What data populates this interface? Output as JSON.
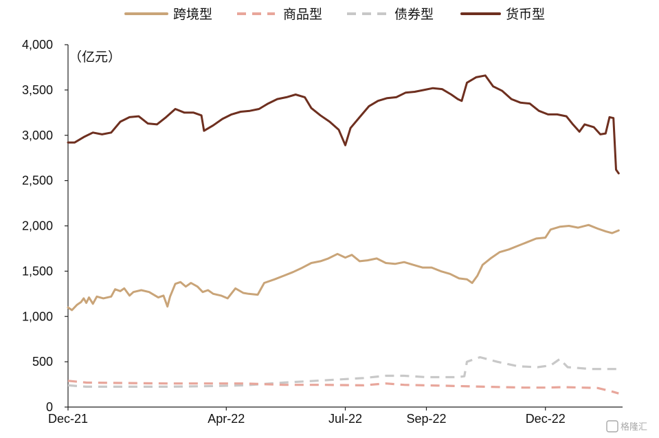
{
  "chart_data": {
    "type": "line",
    "unit_label": "（亿元）",
    "ylim": [
      0,
      4000
    ],
    "y_ticks": [
      0,
      500,
      1000,
      1500,
      2000,
      2500,
      3000,
      3500,
      4000
    ],
    "y_tick_labels": [
      "0",
      "500",
      "1,000",
      "1,500",
      "2,000",
      "2,500",
      "3,000",
      "3,500",
      "4,000"
    ],
    "xlim": [
      "2021-12-01",
      "2023-01-29"
    ],
    "x_ticks": [
      "2021-12-01",
      "2022-04-01",
      "2022-07-01",
      "2022-09-01",
      "2022-12-01"
    ],
    "x_tick_labels": [
      "Dec-21",
      "Apr-22",
      "Jul-22",
      "Sep-22",
      "Dec-22"
    ],
    "grid": false,
    "legend_position": "top",
    "series": [
      {
        "name": "跨境型",
        "color": "#c9a478",
        "style": "solid",
        "points": [
          [
            "2021-12-01",
            1100
          ],
          [
            "2021-12-04",
            1070
          ],
          [
            "2021-12-08",
            1130
          ],
          [
            "2021-12-11",
            1160
          ],
          [
            "2021-12-13",
            1200
          ],
          [
            "2021-12-15",
            1150
          ],
          [
            "2021-12-17",
            1210
          ],
          [
            "2021-12-20",
            1140
          ],
          [
            "2021-12-23",
            1220
          ],
          [
            "2021-12-28",
            1200
          ],
          [
            "2022-01-03",
            1220
          ],
          [
            "2022-01-06",
            1300
          ],
          [
            "2022-01-10",
            1280
          ],
          [
            "2022-01-13",
            1310
          ],
          [
            "2022-01-17",
            1230
          ],
          [
            "2022-01-20",
            1270
          ],
          [
            "2022-01-26",
            1290
          ],
          [
            "2022-02-01",
            1270
          ],
          [
            "2022-02-08",
            1210
          ],
          [
            "2022-02-12",
            1230
          ],
          [
            "2022-02-15",
            1110
          ],
          [
            "2022-02-17",
            1220
          ],
          [
            "2022-02-21",
            1360
          ],
          [
            "2022-02-25",
            1380
          ],
          [
            "2022-03-01",
            1330
          ],
          [
            "2022-03-05",
            1370
          ],
          [
            "2022-03-10",
            1330
          ],
          [
            "2022-03-14",
            1270
          ],
          [
            "2022-03-18",
            1290
          ],
          [
            "2022-03-22",
            1250
          ],
          [
            "2022-03-28",
            1230
          ],
          [
            "2022-04-02",
            1200
          ],
          [
            "2022-04-08",
            1310
          ],
          [
            "2022-04-14",
            1260
          ],
          [
            "2022-04-18",
            1250
          ],
          [
            "2022-04-25",
            1240
          ],
          [
            "2022-04-30",
            1370
          ],
          [
            "2022-05-08",
            1410
          ],
          [
            "2022-05-15",
            1450
          ],
          [
            "2022-05-22",
            1490
          ],
          [
            "2022-05-28",
            1530
          ],
          [
            "2022-06-05",
            1590
          ],
          [
            "2022-06-12",
            1610
          ],
          [
            "2022-06-18",
            1640
          ],
          [
            "2022-06-25",
            1690
          ],
          [
            "2022-07-01",
            1650
          ],
          [
            "2022-07-06",
            1680
          ],
          [
            "2022-07-12",
            1610
          ],
          [
            "2022-07-18",
            1620
          ],
          [
            "2022-07-25",
            1640
          ],
          [
            "2022-08-01",
            1590
          ],
          [
            "2022-08-08",
            1580
          ],
          [
            "2022-08-15",
            1600
          ],
          [
            "2022-08-22",
            1570
          ],
          [
            "2022-08-29",
            1540
          ],
          [
            "2022-09-05",
            1540
          ],
          [
            "2022-09-12",
            1500
          ],
          [
            "2022-09-19",
            1470
          ],
          [
            "2022-09-26",
            1420
          ],
          [
            "2022-10-02",
            1410
          ],
          [
            "2022-10-06",
            1370
          ],
          [
            "2022-10-10",
            1450
          ],
          [
            "2022-10-14",
            1570
          ],
          [
            "2022-10-20",
            1640
          ],
          [
            "2022-10-27",
            1710
          ],
          [
            "2022-11-03",
            1740
          ],
          [
            "2022-11-10",
            1780
          ],
          [
            "2022-11-17",
            1820
          ],
          [
            "2022-11-24",
            1860
          ],
          [
            "2022-12-01",
            1870
          ],
          [
            "2022-12-05",
            1960
          ],
          [
            "2022-12-12",
            1990
          ],
          [
            "2022-12-19",
            2000
          ],
          [
            "2022-12-26",
            1980
          ],
          [
            "2023-01-03",
            2010
          ],
          [
            "2023-01-10",
            1970
          ],
          [
            "2023-01-16",
            1940
          ],
          [
            "2023-01-21",
            1920
          ],
          [
            "2023-01-26",
            1950
          ]
        ]
      },
      {
        "name": "商品型",
        "color": "#e8a69b",
        "style": "dashed",
        "points": [
          [
            "2021-12-01",
            290
          ],
          [
            "2021-12-15",
            270
          ],
          [
            "2022-01-15",
            265
          ],
          [
            "2022-02-15",
            260
          ],
          [
            "2022-03-15",
            260
          ],
          [
            "2022-04-15",
            260
          ],
          [
            "2022-05-15",
            245
          ],
          [
            "2022-06-15",
            245
          ],
          [
            "2022-07-15",
            240
          ],
          [
            "2022-08-01",
            260
          ],
          [
            "2022-08-15",
            245
          ],
          [
            "2022-09-15",
            235
          ],
          [
            "2022-10-15",
            225
          ],
          [
            "2022-11-15",
            215
          ],
          [
            "2022-12-01",
            215
          ],
          [
            "2022-12-15",
            220
          ],
          [
            "2023-01-10",
            210
          ],
          [
            "2023-01-20",
            175
          ],
          [
            "2023-01-26",
            150
          ]
        ]
      },
      {
        "name": "债券型",
        "color": "#c8c8c8",
        "style": "dashed",
        "points": [
          [
            "2021-12-01",
            240
          ],
          [
            "2021-12-15",
            225
          ],
          [
            "2022-01-15",
            225
          ],
          [
            "2022-02-15",
            225
          ],
          [
            "2022-03-15",
            230
          ],
          [
            "2022-04-15",
            240
          ],
          [
            "2022-05-15",
            270
          ],
          [
            "2022-06-15",
            295
          ],
          [
            "2022-07-15",
            320
          ],
          [
            "2022-08-01",
            345
          ],
          [
            "2022-08-15",
            345
          ],
          [
            "2022-09-01",
            330
          ],
          [
            "2022-09-25",
            330
          ],
          [
            "2022-09-30",
            340
          ],
          [
            "2022-10-02",
            500
          ],
          [
            "2022-10-12",
            550
          ],
          [
            "2022-10-25",
            500
          ],
          [
            "2022-11-10",
            450
          ],
          [
            "2022-11-25",
            440
          ],
          [
            "2022-12-05",
            460
          ],
          [
            "2022-12-12",
            530
          ],
          [
            "2022-12-18",
            440
          ],
          [
            "2023-01-05",
            420
          ],
          [
            "2023-01-26",
            420
          ]
        ]
      },
      {
        "name": "货币型",
        "color": "#6e2f1f",
        "style": "solid",
        "points": [
          [
            "2021-12-01",
            2920
          ],
          [
            "2021-12-06",
            2920
          ],
          [
            "2021-12-13",
            2980
          ],
          [
            "2021-12-20",
            3030
          ],
          [
            "2021-12-27",
            3010
          ],
          [
            "2022-01-03",
            3030
          ],
          [
            "2022-01-10",
            3150
          ],
          [
            "2022-01-17",
            3200
          ],
          [
            "2022-01-24",
            3210
          ],
          [
            "2022-01-31",
            3130
          ],
          [
            "2022-02-07",
            3120
          ],
          [
            "2022-02-14",
            3200
          ],
          [
            "2022-02-21",
            3290
          ],
          [
            "2022-02-28",
            3250
          ],
          [
            "2022-03-07",
            3250
          ],
          [
            "2022-03-13",
            3220
          ],
          [
            "2022-03-15",
            3050
          ],
          [
            "2022-03-22",
            3110
          ],
          [
            "2022-03-29",
            3180
          ],
          [
            "2022-04-05",
            3230
          ],
          [
            "2022-04-12",
            3260
          ],
          [
            "2022-04-19",
            3270
          ],
          [
            "2022-04-26",
            3290
          ],
          [
            "2022-05-03",
            3350
          ],
          [
            "2022-05-10",
            3400
          ],
          [
            "2022-05-17",
            3420
          ],
          [
            "2022-05-24",
            3450
          ],
          [
            "2022-05-31",
            3420
          ],
          [
            "2022-06-05",
            3300
          ],
          [
            "2022-06-12",
            3220
          ],
          [
            "2022-06-19",
            3150
          ],
          [
            "2022-06-26",
            3060
          ],
          [
            "2022-07-01",
            2890
          ],
          [
            "2022-07-05",
            3080
          ],
          [
            "2022-07-12",
            3200
          ],
          [
            "2022-07-19",
            3320
          ],
          [
            "2022-07-26",
            3380
          ],
          [
            "2022-08-02",
            3410
          ],
          [
            "2022-08-09",
            3420
          ],
          [
            "2022-08-16",
            3470
          ],
          [
            "2022-08-23",
            3480
          ],
          [
            "2022-08-30",
            3500
          ],
          [
            "2022-09-06",
            3520
          ],
          [
            "2022-09-13",
            3510
          ],
          [
            "2022-09-20",
            3450
          ],
          [
            "2022-09-25",
            3400
          ],
          [
            "2022-09-28",
            3380
          ],
          [
            "2022-10-02",
            3580
          ],
          [
            "2022-10-09",
            3640
          ],
          [
            "2022-10-16",
            3660
          ],
          [
            "2022-10-22",
            3540
          ],
          [
            "2022-10-29",
            3490
          ],
          [
            "2022-11-05",
            3400
          ],
          [
            "2022-11-12",
            3360
          ],
          [
            "2022-11-19",
            3350
          ],
          [
            "2022-11-26",
            3270
          ],
          [
            "2022-12-03",
            3230
          ],
          [
            "2022-12-10",
            3230
          ],
          [
            "2022-12-17",
            3210
          ],
          [
            "2022-12-22",
            3120
          ],
          [
            "2022-12-27",
            3040
          ],
          [
            "2022-12-31",
            3120
          ],
          [
            "2023-01-07",
            3090
          ],
          [
            "2023-01-12",
            3010
          ],
          [
            "2023-01-16",
            3020
          ],
          [
            "2023-01-19",
            3200
          ],
          [
            "2023-01-22",
            3190
          ],
          [
            "2023-01-24",
            2620
          ],
          [
            "2023-01-26",
            2580
          ]
        ]
      }
    ]
  },
  "watermark_text": "格隆汇"
}
